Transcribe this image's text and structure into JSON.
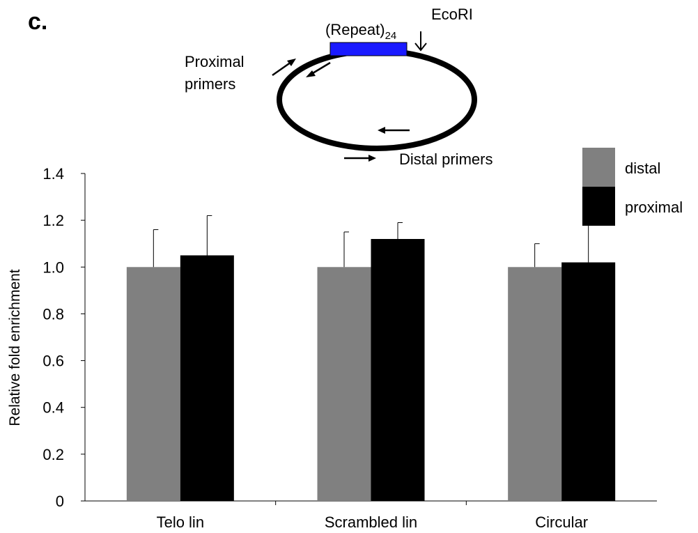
{
  "panel_label": "c.",
  "diagram": {
    "repeat_label": "(Repeat)",
    "repeat_subscript": "24",
    "site_label": "EcoRI",
    "proximal_label_line1": "Proximal",
    "proximal_label_line2": "primers",
    "distal_label": "Distal primers",
    "repeat_color": "#1a1aff"
  },
  "chart_data": {
    "type": "bar",
    "title": "",
    "xlabel": "",
    "ylabel": "Relative fold enrichment",
    "ylim": [
      0,
      1.4
    ],
    "yticks": [
      0,
      0.2,
      0.4,
      0.6,
      0.8,
      1.0,
      1.2,
      1.4
    ],
    "ytick_labels": [
      "0",
      "0.2",
      "0.4",
      "0.6",
      "0.8",
      "1.0",
      "1.2",
      "1.4"
    ],
    "categories": [
      "Telo lin",
      "Scrambled lin",
      "Circular"
    ],
    "series": [
      {
        "name": "distal",
        "color": "#808080",
        "values": [
          1.0,
          1.0,
          1.0
        ],
        "errors": [
          0.16,
          0.15,
          0.1
        ]
      },
      {
        "name": "proximal",
        "color": "#000000",
        "values": [
          1.05,
          1.12,
          1.02
        ],
        "errors": [
          0.17,
          0.07,
          0.27
        ]
      }
    ],
    "legend_position": "top-right",
    "grid": false
  }
}
